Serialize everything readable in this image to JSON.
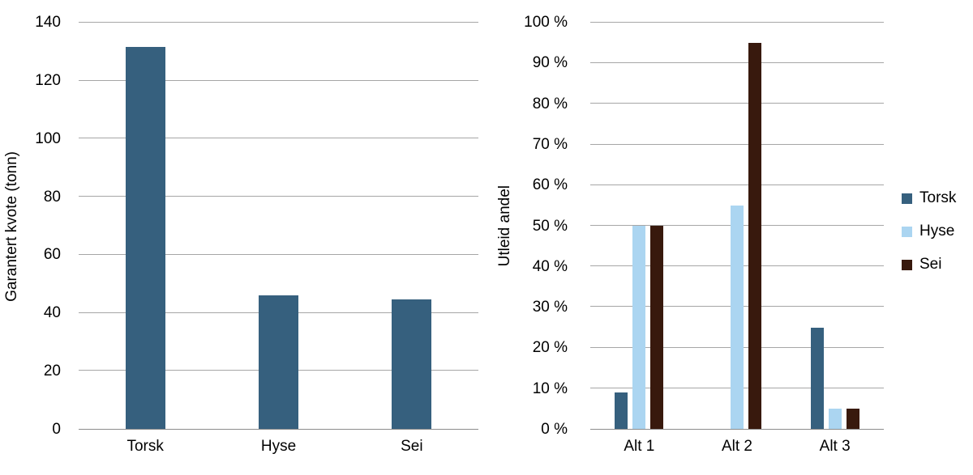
{
  "chart_data": [
    {
      "id": "garantert-kvote",
      "type": "bar",
      "title": "",
      "xlabel": "",
      "ylabel": "Garantert kvote (tonn)",
      "categories": [
        "Torsk",
        "Hyse",
        "Sei"
      ],
      "series": [
        {
          "name": "",
          "color": "#36607e",
          "values": [
            131.5,
            46,
            44.5
          ]
        }
      ],
      "ylim": [
        0,
        140
      ],
      "ytick_step": 20,
      "ytick_suffix": "",
      "grid": "horizontal",
      "legend_position": "none"
    },
    {
      "id": "utleid-andel",
      "type": "bar",
      "title": "",
      "xlabel": "",
      "ylabel": "Utleid andel",
      "categories": [
        "Alt 1",
        "Alt 2",
        "Alt 3"
      ],
      "series": [
        {
          "name": "Torsk",
          "color": "#36607e",
          "values": [
            9,
            0,
            25
          ]
        },
        {
          "name": "Hyse",
          "color": "#abd5f1",
          "values": [
            50,
            55,
            5
          ]
        },
        {
          "name": "Sei",
          "color": "#38190d",
          "values": [
            50,
            95,
            5
          ]
        }
      ],
      "ylim": [
        0,
        100
      ],
      "ytick_step": 10,
      "ytick_suffix": " %",
      "grid": "horizontal",
      "legend_position": "right"
    }
  ],
  "legend": {
    "items": [
      {
        "label": "Torsk",
        "color": "#36607e"
      },
      {
        "label": "Hyse",
        "color": "#abd5f1"
      },
      {
        "label": "Sei",
        "color": "#38190d"
      }
    ]
  },
  "colors": {
    "background": "#ffffff",
    "gridline": "#a6a6a6",
    "axis_line": "#8c8c8c",
    "text": "#000000"
  }
}
